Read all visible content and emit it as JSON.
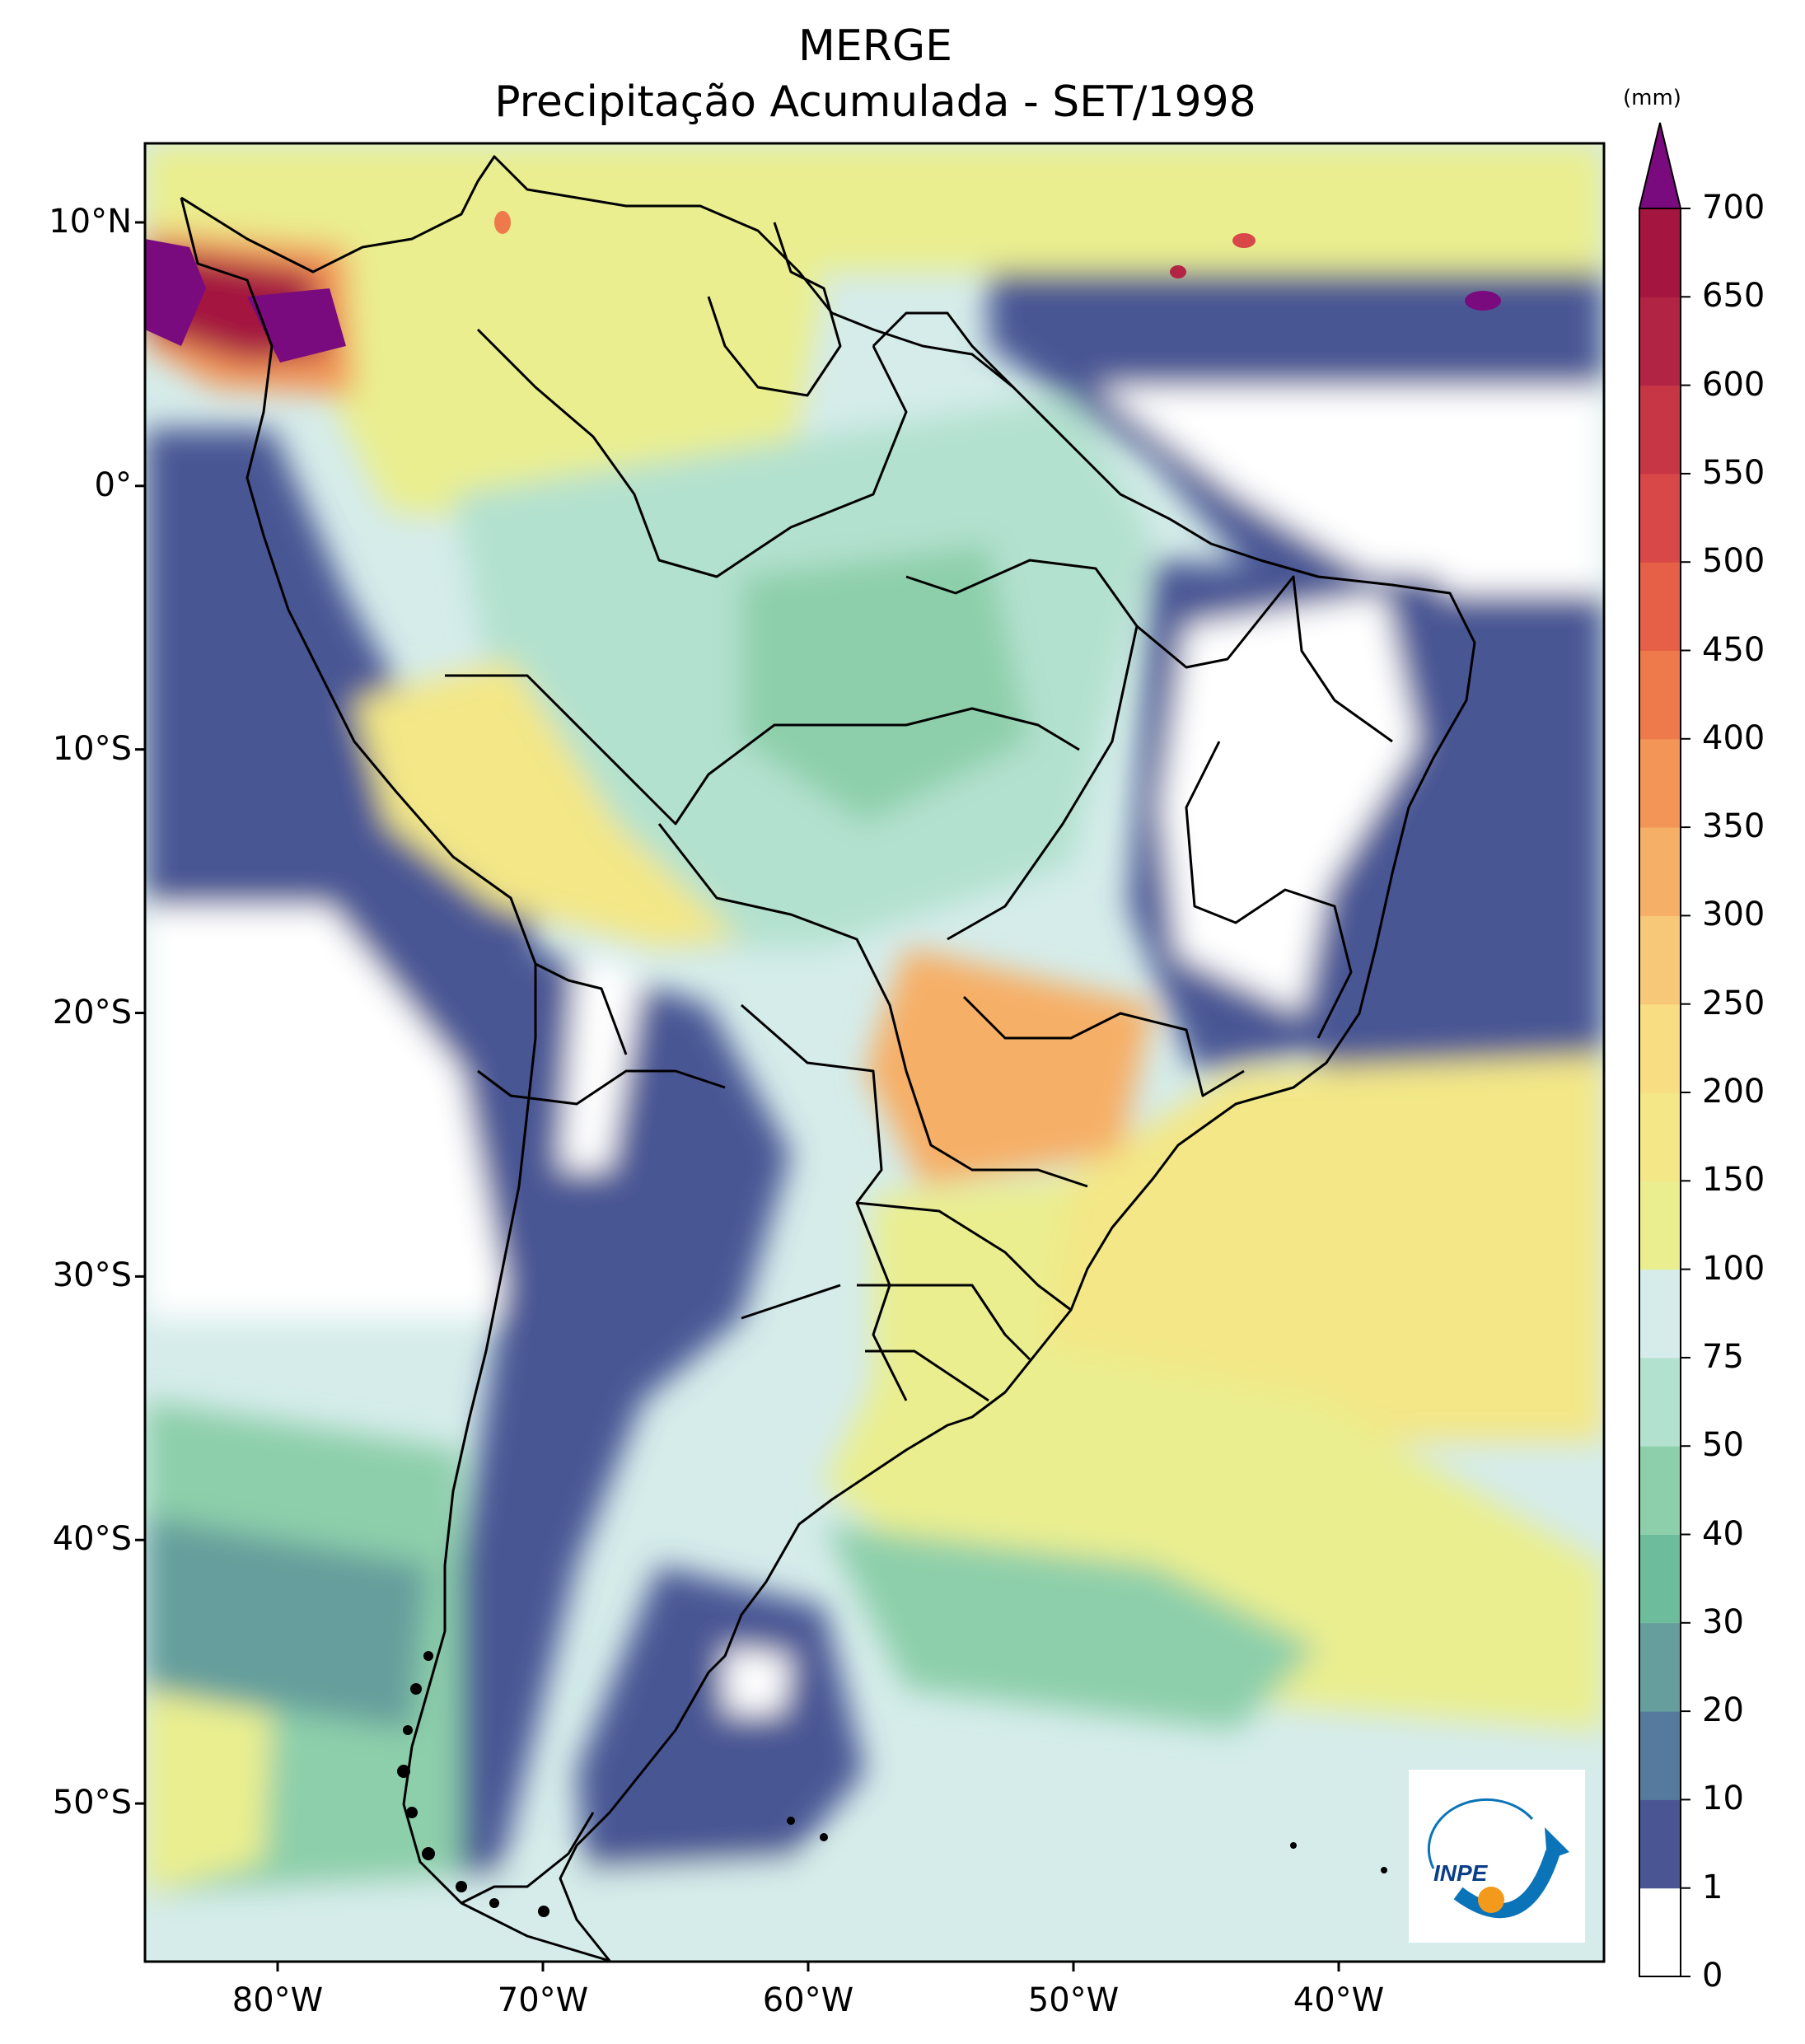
{
  "title": {
    "line1": "MERGE",
    "line2": "Precipitação Acumulada - SET/1998"
  },
  "map": {
    "lat_ticks": [
      {
        "lat": 10,
        "label": "10°N"
      },
      {
        "lat": 0,
        "label": "0°"
      },
      {
        "lat": -10,
        "label": "10°S"
      },
      {
        "lat": -20,
        "label": "20°S"
      },
      {
        "lat": -30,
        "label": "30°S"
      },
      {
        "lat": -40,
        "label": "40°S"
      },
      {
        "lat": -50,
        "label": "50°S"
      }
    ],
    "lon_ticks": [
      {
        "lon": -80,
        "label": "80°W"
      },
      {
        "lon": -70,
        "label": "70°W"
      },
      {
        "lon": -60,
        "label": "60°W"
      },
      {
        "lon": -50,
        "label": "50°W"
      },
      {
        "lon": -40,
        "label": "40°W"
      }
    ],
    "lon_range": [
      -85,
      -30
    ],
    "lat_range": [
      -56,
      13
    ]
  },
  "colorbar": {
    "units": "(mm)",
    "extend": "max",
    "levels": [
      "0",
      "1",
      "10",
      "20",
      "30",
      "40",
      "50",
      "75",
      "100",
      "150",
      "200",
      "250",
      "300",
      "350",
      "400",
      "450",
      "500",
      "550",
      "600",
      "650",
      "700"
    ],
    "colors": [
      "#ffffff",
      "#4a5694",
      "#557a9e",
      "#659e9c",
      "#6dbc9c",
      "#8dcfaa",
      "#b3e1cf",
      "#d5ecea",
      "#eaee8f",
      "#f3e787",
      "#f8dd82",
      "#f7c877",
      "#f6af66",
      "#f39557",
      "#ee7a4c",
      "#e56047",
      "#d84848",
      "#c63645",
      "#b12443",
      "#a4163f"
    ],
    "extend_color": "#7a0b7e"
  },
  "logo": {
    "text": "INPE",
    "colors": {
      "blue": "#0b73b8",
      "orange": "#f39a1d"
    }
  }
}
